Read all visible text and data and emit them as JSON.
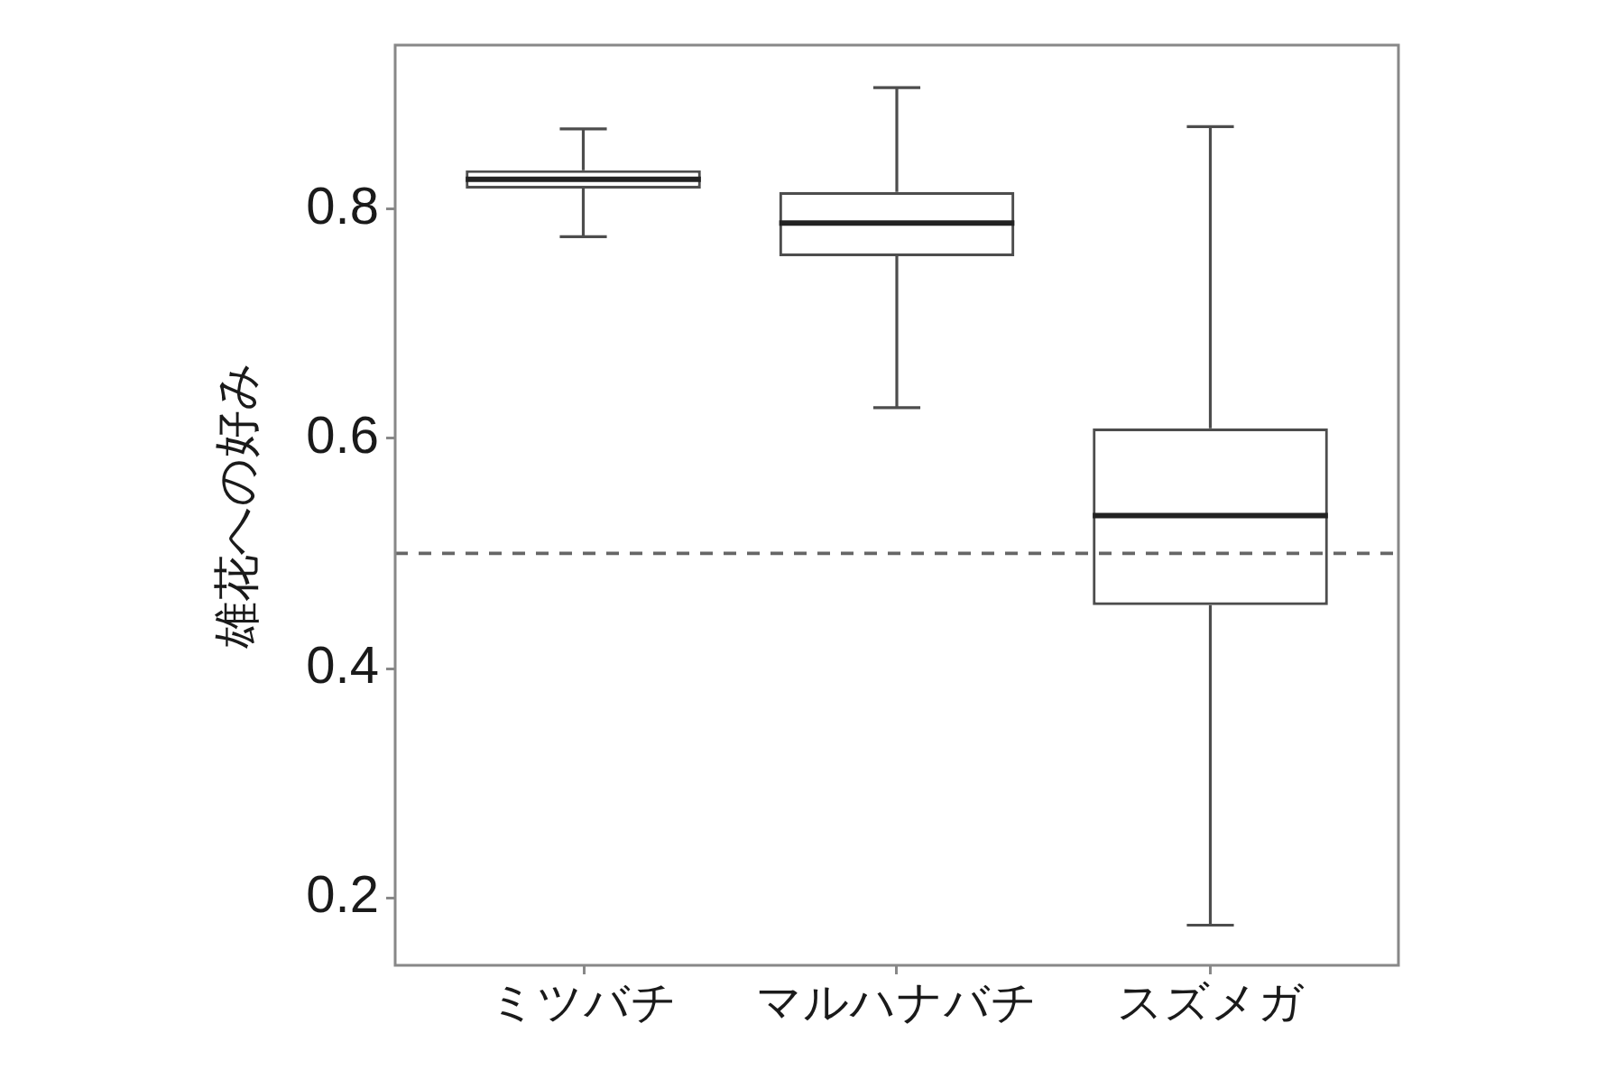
{
  "chart_data": {
    "type": "box",
    "ylabel": "雄花への好み",
    "categories": [
      "ミツバチ",
      "マルハナバチ",
      "スズメガ"
    ],
    "color": "#4d4d4d",
    "boxes": [
      {
        "low": 0.776,
        "q1": 0.818,
        "median": 0.826,
        "q3": 0.834,
        "high": 0.87
      },
      {
        "low": 0.627,
        "q1": 0.759,
        "median": 0.788,
        "q3": 0.815,
        "high": 0.906
      },
      {
        "low": 0.176,
        "q1": 0.455,
        "median": 0.533,
        "q3": 0.609,
        "high": 0.872
      }
    ],
    "ylim": [
      0.141,
      0.943
    ],
    "yticks": [
      0.2,
      0.4,
      0.6,
      0.8
    ],
    "ref_lines": [
      {
        "axis": "y",
        "value": 0.5,
        "color": "#666666",
        "line_style": "dashed"
      }
    ]
  }
}
